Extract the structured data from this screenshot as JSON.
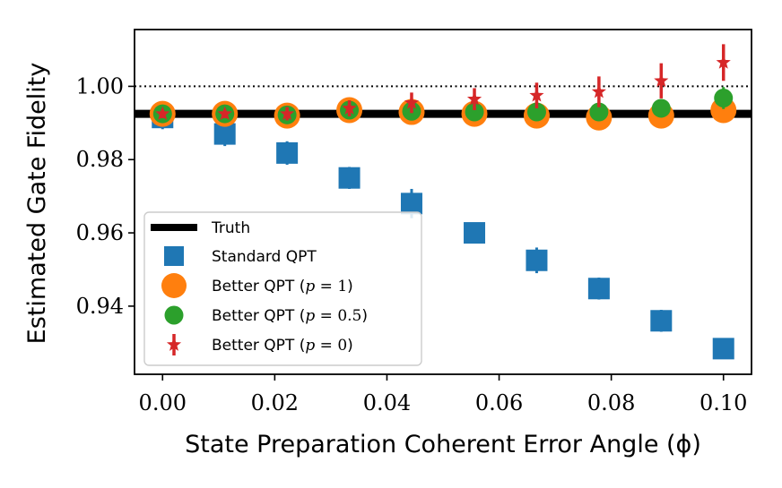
{
  "chart_data": {
    "type": "scatter",
    "title": "",
    "xlabel": "State Preparation Coherent Error Angle (ϕ)",
    "ylabel": "Estimated Gate Fidelity",
    "xlim": [
      -0.005,
      0.105
    ],
    "ylim": [
      0.9214,
      1.0155
    ],
    "xticks": [
      0.0,
      0.02,
      0.04,
      0.06,
      0.08,
      0.1
    ],
    "xtick_labels": [
      "0.00",
      "0.02",
      "0.04",
      "0.06",
      "0.08",
      "0.10"
    ],
    "yticks": [
      0.94,
      0.96,
      0.98,
      1.0
    ],
    "ytick_labels": [
      "0.94",
      "0.96",
      "0.98",
      "1.00"
    ],
    "grid": false,
    "legend_position": "lower-left",
    "x": [
      0.0,
      0.0111,
      0.0222,
      0.0333,
      0.0444,
      0.0556,
      0.0667,
      0.0778,
      0.0889,
      0.1
    ],
    "reference_lines": [
      {
        "y": 0.9925,
        "style": "solid",
        "color": "#000000",
        "label": "Truth"
      },
      {
        "y": 1.0,
        "style": "dotted",
        "color": "#000000"
      }
    ],
    "series": [
      {
        "name": "Standard QPT",
        "marker": "square",
        "color": "#1f77b4",
        "values": [
          0.9915,
          0.987,
          0.9818,
          0.975,
          0.968,
          0.96,
          0.9525,
          0.9448,
          0.936,
          0.9284
        ],
        "errors": [
          0.0032,
          0.0033,
          0.0032,
          0.003,
          0.004,
          0.0025,
          0.0035,
          0.003,
          0.003,
          0.0025
        ]
      },
      {
        "name": "Better QPT (p = 1)",
        "marker": "circle",
        "color": "#ff7f0e",
        "values": [
          0.9925,
          0.9925,
          0.992,
          0.9935,
          0.993,
          0.9925,
          0.992,
          0.9915,
          0.992,
          0.9935
        ],
        "errors": [
          0.0012,
          0.0012,
          0.0012,
          0.0014,
          0.0016,
          0.0018,
          0.002,
          0.0022,
          0.0025,
          0.0025
        ]
      },
      {
        "name": "Better QPT (p = 0.5)",
        "marker": "circle",
        "color": "#2ca02c",
        "values": [
          0.9925,
          0.9925,
          0.9922,
          0.9935,
          0.9932,
          0.993,
          0.993,
          0.993,
          0.994,
          0.9968
        ],
        "errors": [
          0.0012,
          0.0012,
          0.0012,
          0.0014,
          0.0016,
          0.0018,
          0.002,
          0.0022,
          0.0025,
          0.003
        ]
      },
      {
        "name": "Better QPT (p = 0)",
        "marker": "star",
        "color": "#d62728",
        "values": [
          0.9925,
          0.9925,
          0.9925,
          0.994,
          0.9955,
          0.9965,
          0.9975,
          0.9985,
          1.0015,
          1.0065
        ],
        "errors": [
          0.0012,
          0.0012,
          0.0018,
          0.0022,
          0.0028,
          0.003,
          0.0035,
          0.0042,
          0.0048,
          0.005
        ]
      }
    ],
    "legend": [
      {
        "symbol": "line",
        "color": "#000000",
        "label": "Truth"
      },
      {
        "symbol": "square",
        "color": "#1f77b4",
        "label": "Standard QPT"
      },
      {
        "symbol": "circle-big",
        "color": "#ff7f0e",
        "label_prefix": "Better QPT (",
        "label_var": "p",
        "label_eq": " = ",
        "label_val": "1",
        "label_suffix": ")"
      },
      {
        "symbol": "circle",
        "color": "#2ca02c",
        "label_prefix": "Better QPT (",
        "label_var": "p",
        "label_eq": " = ",
        "label_val": "0.5",
        "label_suffix": ")"
      },
      {
        "symbol": "star",
        "color": "#d62728",
        "label_prefix": "Better QPT (",
        "label_var": "p",
        "label_eq": " = ",
        "label_val": "0",
        "label_suffix": ")"
      }
    ]
  }
}
